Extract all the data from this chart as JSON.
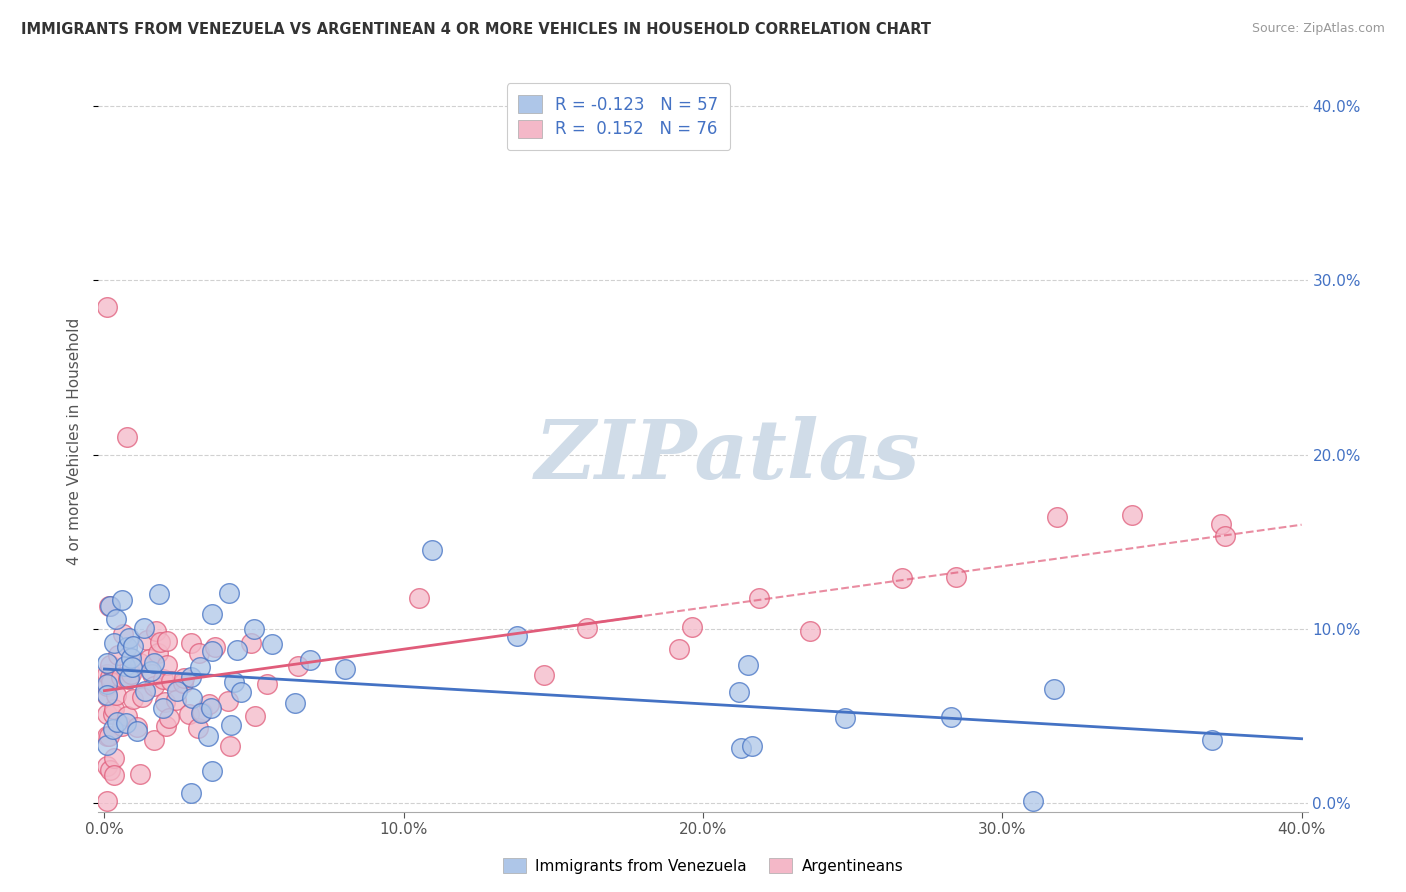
{
  "title": "IMMIGRANTS FROM VENEZUELA VS ARGENTINEAN 4 OR MORE VEHICLES IN HOUSEHOLD CORRELATION CHART",
  "source": "Source: ZipAtlas.com",
  "ylabel": "4 or more Vehicles in Household",
  "series1_name": "Immigrants from Venezuela",
  "series2_name": "Argentineans",
  "series1_color": "#aec6e8",
  "series2_color": "#f4b8c8",
  "series1_edge": "#4472c4",
  "series2_edge": "#e05c7a",
  "series1_line_color": "#4472c4",
  "series2_line_color": "#e05c7a",
  "right_tick_color": "#4472c4",
  "background_color": "#ffffff",
  "grid_color": "#cccccc",
  "R1": -0.123,
  "N1": 57,
  "R2": 0.152,
  "N2": 76,
  "xlim": [
    0.0,
    0.4
  ],
  "ylim": [
    0.0,
    0.42
  ],
  "xticks": [
    0.0,
    0.1,
    0.2,
    0.3,
    0.4
  ],
  "yticks": [
    0.0,
    0.1,
    0.2,
    0.3,
    0.4
  ],
  "watermark_color": "#d0dce8"
}
